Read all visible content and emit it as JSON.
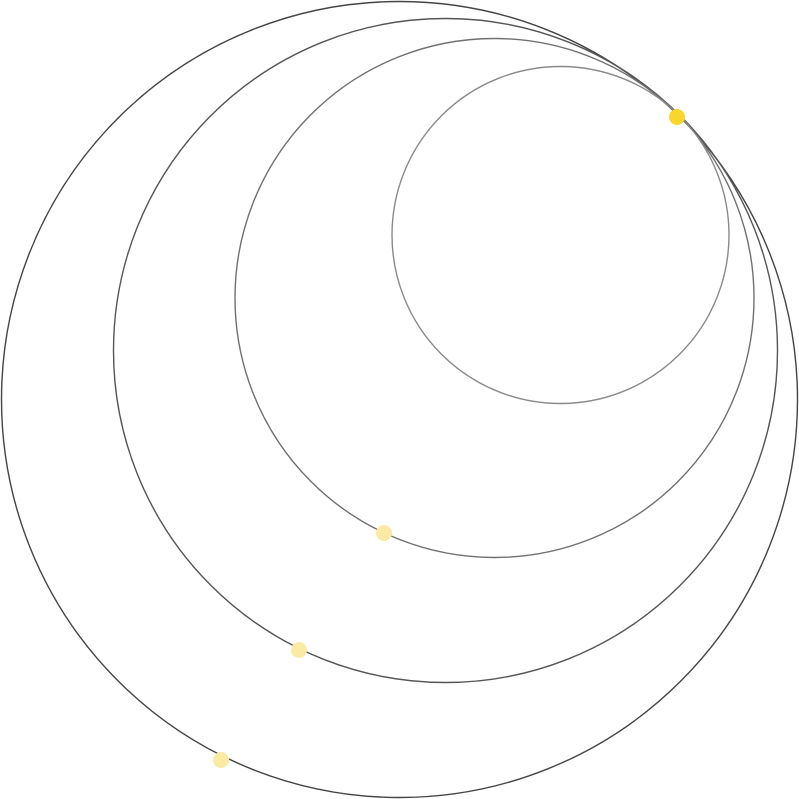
{
  "palette": {
    "background": "#ffffff",
    "dot_active": "#f9d62e",
    "dot_faded": "#fbe9a6"
  },
  "rings": [
    {
      "id": "ring-1",
      "stroke": "#444444"
    },
    {
      "id": "ring-2",
      "stroke": "#555555"
    },
    {
      "id": "ring-3",
      "stroke": "#707070"
    },
    {
      "id": "ring-4",
      "stroke": "#8a8a8a"
    }
  ],
  "markers": [
    {
      "id": "marker-active",
      "state": "active"
    },
    {
      "id": "marker-trail-1",
      "state": "faded"
    },
    {
      "id": "marker-trail-2",
      "state": "faded"
    },
    {
      "id": "marker-trail-3",
      "state": "faded"
    }
  ]
}
